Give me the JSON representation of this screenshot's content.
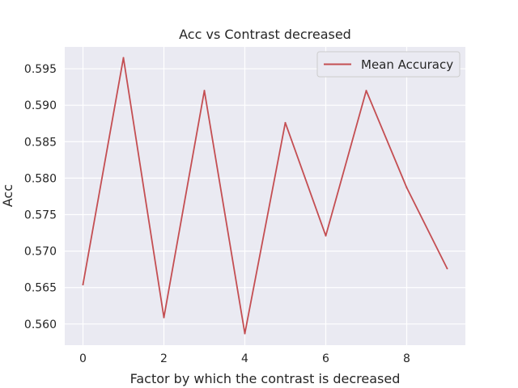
{
  "chart_data": {
    "type": "line",
    "title": "Acc vs Contrast decreased",
    "xlabel": "Factor by which the contrast is decreased",
    "ylabel": "Acc",
    "x": [
      0,
      1,
      2,
      3,
      4,
      5,
      6,
      7,
      8,
      9
    ],
    "series": [
      {
        "name": "Mean Accuracy",
        "color": "#c44e52",
        "values": [
          0.5654,
          0.5965,
          0.5609,
          0.592,
          0.5587,
          0.5876,
          0.5721,
          0.592,
          0.5787,
          0.5676
        ]
      }
    ],
    "xlim": [
      -0.45,
      9.45
    ],
    "ylim": [
      0.5571,
      0.598
    ],
    "xticks": [
      0,
      2,
      4,
      6,
      8
    ],
    "xtick_labels": [
      "0",
      "2",
      "4",
      "6",
      "8"
    ],
    "yticks": [
      0.56,
      0.565,
      0.57,
      0.575,
      0.58,
      0.585,
      0.59,
      0.595
    ],
    "ytick_labels": [
      "0.560",
      "0.565",
      "0.570",
      "0.575",
      "0.580",
      "0.585",
      "0.590",
      "0.595"
    ],
    "grid": true,
    "legend_position": "top-right",
    "background_color": "#eaeaf2",
    "grid_color": "#ffffff"
  }
}
